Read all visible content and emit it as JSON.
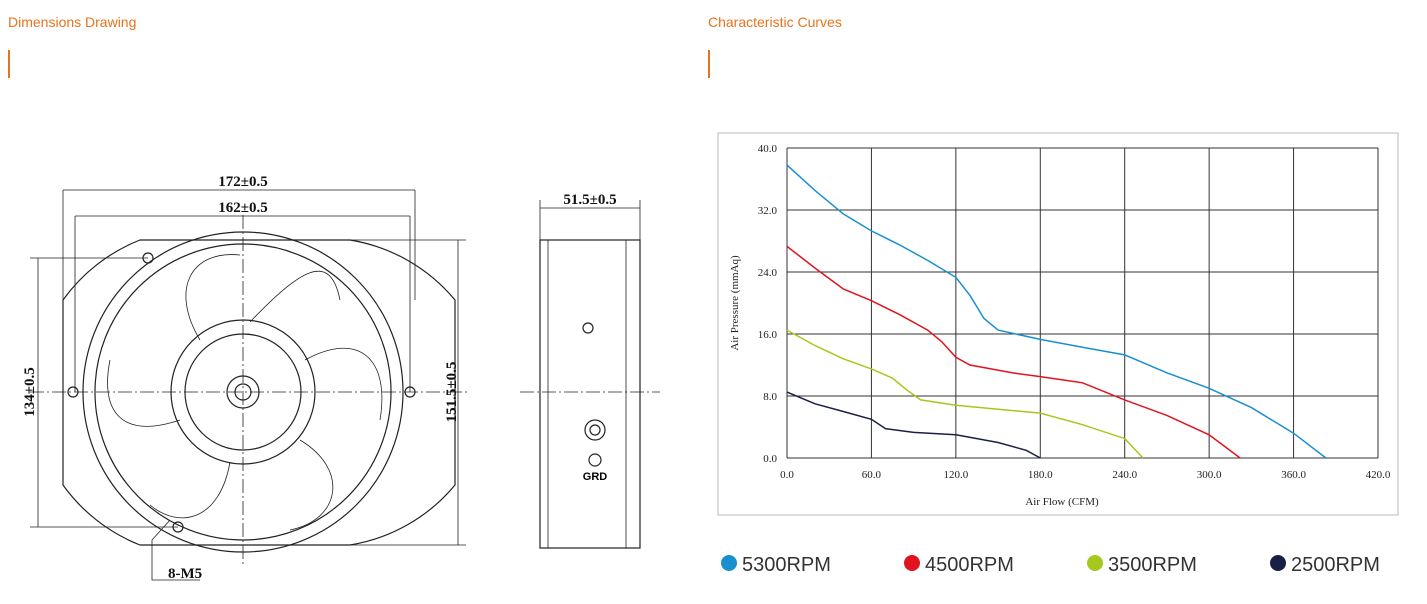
{
  "dimensions": {
    "title": "Dimensions Drawing",
    "labels": [
      "172±0.5",
      "162±0.5",
      "134±0.5",
      "151.5±0.5",
      "51.5±0.5",
      "8-M5",
      "GRD"
    ]
  },
  "chart_data": {
    "type": "line",
    "title": "Characteristic Curves",
    "x_label": "Air Flow (CFM)",
    "y_label": "Air Pressure (mmAq)",
    "xlim": [
      0,
      420
    ],
    "ylim": [
      0,
      40
    ],
    "xticks": [
      {
        "value": 0,
        "label": "0.0"
      },
      {
        "value": 60,
        "label": "60.0"
      },
      {
        "value": 120,
        "label": "120.0"
      },
      {
        "value": 180,
        "label": "180.0"
      },
      {
        "value": 240,
        "label": "240.0"
      },
      {
        "value": 300,
        "label": "300.0"
      },
      {
        "value": 360,
        "label": "360.0"
      },
      {
        "value": 420,
        "label": "420.0"
      }
    ],
    "yticks": [
      {
        "value": 0,
        "label": "0.0"
      },
      {
        "value": 8,
        "label": "8.0"
      },
      {
        "value": 16,
        "label": "16.0"
      },
      {
        "value": 24,
        "label": "24.0"
      },
      {
        "value": 32,
        "label": "32.0"
      },
      {
        "value": 40,
        "label": "40.0"
      }
    ],
    "grid": true,
    "series": [
      {
        "name": "5300RPM",
        "color": "#1a8fd0",
        "x": [
          0,
          20,
          40,
          60,
          80,
          100,
          120,
          130,
          140,
          150,
          180,
          210,
          240,
          270,
          300,
          330,
          360,
          383
        ],
        "values": [
          37.8,
          34.5,
          31.5,
          29.3,
          27.5,
          25.5,
          23.3,
          21,
          18,
          16.5,
          15.3,
          14.3,
          13.3,
          11,
          9,
          6.5,
          3.2,
          0
        ]
      },
      {
        "name": "4500RPM",
        "color": "#e0141e",
        "x": [
          0,
          20,
          40,
          60,
          80,
          100,
          110,
          120,
          130,
          160,
          180,
          210,
          240,
          270,
          300,
          322
        ],
        "values": [
          27.3,
          24.5,
          21.8,
          20.3,
          18.5,
          16.5,
          15,
          13,
          12,
          11,
          10.5,
          9.7,
          7.5,
          5.5,
          3,
          0
        ]
      },
      {
        "name": "3500RPM",
        "color": "#a5c81e",
        "x": [
          0,
          20,
          40,
          60,
          75,
          85,
          95,
          120,
          150,
          180,
          210,
          240,
          253
        ],
        "values": [
          16.5,
          14.5,
          12.8,
          11.5,
          10.3,
          8.8,
          7.5,
          6.8,
          6.3,
          5.8,
          4.3,
          2.5,
          0
        ]
      },
      {
        "name": "2500RPM",
        "color": "#1a1f45",
        "x": [
          0,
          20,
          40,
          60,
          70,
          90,
          120,
          150,
          170,
          180
        ],
        "values": [
          8.5,
          7,
          6,
          5,
          3.8,
          3.3,
          3,
          2,
          1,
          0
        ]
      }
    ]
  }
}
